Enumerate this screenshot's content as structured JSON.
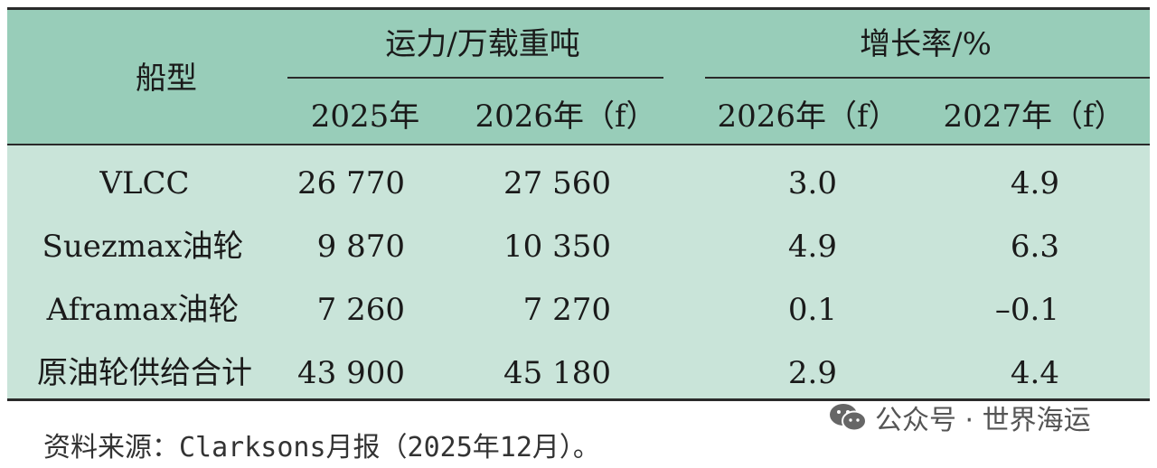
{
  "table": {
    "header": {
      "ship_type": "船型",
      "capacity_group": "运力/万载重吨",
      "growth_group": "增长率/%",
      "cap_2025": "2025年",
      "cap_2026f": "2026年（f）",
      "growth_2026f": "2026年（f）",
      "growth_2027f": "2027年（f）"
    },
    "rows": [
      {
        "ship": "VLCC",
        "cap_2025": "26 770",
        "cap_2026f": "27 560",
        "growth_2026f": "3.0",
        "growth_2027f": "4.9"
      },
      {
        "ship": "Suezmax油轮",
        "cap_2025": "9 870",
        "cap_2026f": "10 350",
        "growth_2026f": "4.9",
        "growth_2027f": "6.3"
      },
      {
        "ship": "Aframax油轮",
        "cap_2025": "7 260",
        "cap_2026f": "7 270",
        "growth_2026f": "0.1",
        "growth_2027f": "–0.1"
      },
      {
        "ship": "原油轮供给合计",
        "cap_2025": "43 900",
        "cap_2026f": "45 180",
        "growth_2026f": "2.9",
        "growth_2027f": "4.4"
      }
    ]
  },
  "source_note": "资料来源：Clarksons月报（2025年12月）。",
  "watermark": {
    "text": "公众号 · 世界海运",
    "icon": "wechat-icon",
    "color": "#555555"
  },
  "colors": {
    "header_bg": "#98cdb9",
    "body_bg": "#c9e4d9",
    "rule": "#2a2a2a"
  }
}
